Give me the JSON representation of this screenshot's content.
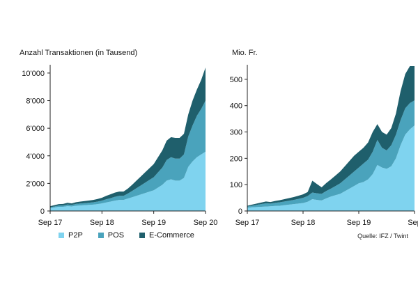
{
  "chart_data": [
    {
      "type": "area",
      "stacked": true,
      "title": "Anzahl Transaktionen (in Tausend)",
      "xlabel": "",
      "ylabel": "",
      "ylim": [
        0,
        10500
      ],
      "yticks": [
        0,
        2000,
        4000,
        6000,
        8000,
        10000
      ],
      "ytick_labels": [
        "0",
        "2'000",
        "4'000",
        "6'000",
        "8'000",
        "10'000"
      ],
      "xticks": [
        0,
        12,
        24,
        36
      ],
      "xtick_labels": [
        "Sep 17",
        "Sep 18",
        "Sep 19",
        "Sep 20"
      ],
      "x": [
        0,
        1,
        2,
        3,
        4,
        5,
        6,
        7,
        8,
        9,
        10,
        11,
        12,
        13,
        14,
        15,
        16,
        17,
        18,
        19,
        20,
        21,
        22,
        23,
        24,
        25,
        26,
        27,
        28,
        29,
        30,
        31,
        32,
        33,
        34,
        35,
        36
      ],
      "series": [
        {
          "name": "P2P",
          "values": [
            200,
            250,
            300,
            300,
            350,
            330,
            380,
            400,
            420,
            440,
            460,
            500,
            550,
            620,
            680,
            750,
            800,
            800,
            900,
            1000,
            1100,
            1200,
            1300,
            1400,
            1500,
            1700,
            1900,
            2200,
            2300,
            2200,
            2200,
            2400,
            3200,
            3600,
            3900,
            4100,
            4300
          ]
        },
        {
          "name": "POS",
          "values": [
            70,
            80,
            100,
            100,
            120,
            110,
            130,
            140,
            150,
            160,
            170,
            180,
            200,
            230,
            250,
            280,
            300,
            300,
            360,
            450,
            550,
            650,
            750,
            850,
            950,
            1100,
            1250,
            1500,
            1600,
            1600,
            1600,
            1700,
            2200,
            2600,
            3000,
            3300,
            3700
          ]
        },
        {
          "name": "E-Commerce",
          "values": [
            80,
            90,
            100,
            110,
            120,
            110,
            130,
            140,
            150,
            160,
            170,
            190,
            210,
            250,
            280,
            300,
            310,
            310,
            360,
            450,
            550,
            650,
            750,
            850,
            950,
            1100,
            1250,
            1400,
            1450,
            1500,
            1500,
            1500,
            1600,
            1800,
            1900,
            2100,
            2400
          ]
        }
      ],
      "legend": "bottom",
      "grid": false
    },
    {
      "type": "area",
      "stacked": true,
      "title": "Mio. Fr.",
      "xlabel": "",
      "ylabel": "",
      "ylim": [
        0,
        550
      ],
      "yticks": [
        0,
        100,
        200,
        300,
        400,
        500
      ],
      "ytick_labels": [
        "0",
        "100",
        "200",
        "300",
        "400",
        "500"
      ],
      "xticks": [
        0,
        12,
        24,
        36
      ],
      "xtick_labels": [
        "Sep 17",
        "Sep 18",
        "Sep 19",
        "Sep"
      ],
      "x": [
        0,
        1,
        2,
        3,
        4,
        5,
        6,
        7,
        8,
        9,
        10,
        11,
        12,
        13,
        14,
        15,
        16,
        17,
        18,
        19,
        20,
        21,
        22,
        23,
        24,
        25,
        26,
        27,
        28,
        29,
        30,
        31,
        32,
        33,
        34,
        35,
        36
      ],
      "series": [
        {
          "name": "P2P",
          "values": [
            12,
            14,
            15,
            16,
            17,
            18,
            19,
            20,
            22,
            24,
            26,
            28,
            30,
            35,
            45,
            42,
            40,
            48,
            55,
            60,
            65,
            75,
            85,
            95,
            105,
            110,
            120,
            140,
            175,
            165,
            160,
            170,
            200,
            250,
            290,
            310,
            325
          ]
        },
        {
          "name": "POS",
          "values": [
            5,
            6,
            8,
            10,
            12,
            10,
            12,
            13,
            14,
            15,
            16,
            18,
            20,
            22,
            25,
            25,
            25,
            28,
            30,
            35,
            40,
            45,
            50,
            55,
            60,
            70,
            75,
            85,
            95,
            75,
            70,
            80,
            90,
            95,
            100,
            100,
            95
          ]
        },
        {
          "name": "E-Commerce",
          "values": [
            3,
            4,
            5,
            6,
            7,
            6,
            7,
            8,
            9,
            10,
            11,
            12,
            13,
            15,
            45,
            35,
            25,
            30,
            35,
            40,
            45,
            50,
            55,
            60,
            60,
            60,
            65,
            75,
            60,
            60,
            60,
            65,
            80,
            110,
            130,
            140,
            130
          ]
        }
      ],
      "legend": "none",
      "grid": false
    }
  ],
  "legend_items": [
    {
      "label": "P2P",
      "color": "#7fd3ef"
    },
    {
      "label": "POS",
      "color": "#4aa3bc"
    },
    {
      "label": "E-Commerce",
      "color": "#1f5f6c"
    }
  ],
  "source": "Quelle: IFZ / Twint"
}
